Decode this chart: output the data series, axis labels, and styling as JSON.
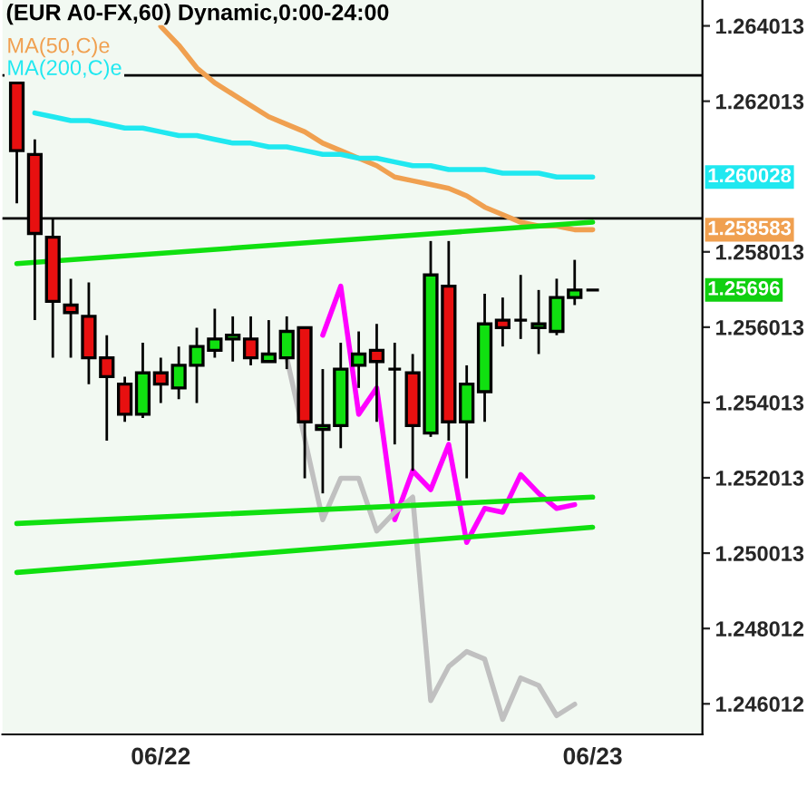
{
  "chart_data": {
    "type": "candlestick",
    "title": "(EUR A0-FX,60) Dynamic,0:00-24:00",
    "categories": [
      null,
      null,
      null,
      null,
      null,
      null,
      null,
      null,
      "06/22",
      null,
      null,
      null,
      null,
      null,
      null,
      null,
      null,
      null,
      null,
      null,
      null,
      null,
      null,
      null,
      null,
      null,
      null,
      null,
      null,
      null,
      null,
      null,
      "06/23"
    ],
    "ohlc": [
      [
        1.2625,
        1.2625,
        1.2593,
        1.2607
      ],
      [
        1.2606,
        1.261,
        1.2562,
        1.2585
      ],
      [
        1.2584,
        1.2589,
        1.2552,
        1.2567
      ],
      [
        1.2566,
        1.2573,
        1.2552,
        1.2564
      ],
      [
        1.2563,
        1.2572,
        1.2545,
        1.2552
      ],
      [
        1.2552,
        1.2558,
        1.253,
        1.2547
      ],
      [
        1.2545,
        1.2547,
        1.2535,
        1.2537
      ],
      [
        1.2537,
        1.2556,
        1.2536,
        1.2548
      ],
      [
        1.2548,
        1.2552,
        1.254,
        1.2545
      ],
      [
        1.2544,
        1.2555,
        1.2541,
        1.255
      ],
      [
        1.255,
        1.256,
        1.254,
        1.2555
      ],
      [
        1.2554,
        1.2565,
        1.2552,
        1.2557
      ],
      [
        1.2557,
        1.2563,
        1.2551,
        1.2558
      ],
      [
        1.2557,
        1.2563,
        1.255,
        1.2552
      ],
      [
        1.2551,
        1.2562,
        1.2551,
        1.2553
      ],
      [
        1.2552,
        1.2563,
        1.2549,
        1.2559
      ],
      [
        1.256,
        1.256,
        1.252,
        1.2535
      ],
      [
        1.2533,
        1.2549,
        1.2516,
        1.2534
      ],
      [
        1.2534,
        1.2556,
        1.2528,
        1.2549
      ],
      [
        1.255,
        1.2559,
        1.2544,
        1.2553
      ],
      [
        1.2554,
        1.2561,
        1.2535,
        1.2551
      ],
      [
        1.2549,
        1.2556,
        1.2529,
        1.2549
      ],
      [
        1.2548,
        1.2553,
        1.2522,
        1.2534
      ],
      [
        1.2532,
        1.2583,
        1.2531,
        1.2574
      ],
      [
        1.2571,
        1.2583,
        1.253,
        1.2535
      ],
      [
        1.2535,
        1.255,
        1.252,
        1.2545
      ],
      [
        1.2543,
        1.2569,
        1.2535,
        1.2561
      ],
      [
        1.2562,
        1.2568,
        1.2555,
        1.256
      ],
      [
        1.2562,
        1.2574,
        1.2557,
        1.2562
      ],
      [
        1.256,
        1.257,
        1.2553,
        1.2561
      ],
      [
        1.2559,
        1.2573,
        1.2558,
        1.2568
      ],
      [
        1.2568,
        1.2578,
        1.2566,
        1.257
      ],
      [
        1.257,
        1.257,
        1.257,
        1.257
      ]
    ],
    "colors": [
      "#e81010",
      "#e81010",
      "#e81010",
      "#e81010",
      "#e81010",
      "#e81010",
      "#e81010",
      "#10e010",
      "#e81010",
      "#10e010",
      "#10e010",
      "#10e010",
      "#10e010",
      "#e81010",
      "#10e010",
      "#10e010",
      "#e81010",
      "#10e010",
      "#10e010",
      "#10e010",
      "#e81010",
      "#000000",
      "#e81010",
      "#10e010",
      "#e81010",
      "#10e010",
      "#10e010",
      "#e81010",
      "#000000",
      "#10e010",
      "#10e010",
      "#10e010",
      "#000000"
    ],
    "series": [
      {
        "name": "MA(50,C)e",
        "type": "line",
        "color": "#f0a050",
        "values": [
          null,
          null,
          null,
          null,
          null,
          null,
          null,
          null,
          1.264,
          1.2635,
          1.2629,
          1.2625,
          1.2622,
          1.2619,
          1.2616,
          1.2614,
          1.2612,
          1.2609,
          1.2607,
          1.2605,
          1.2603,
          1.26,
          1.2599,
          1.2598,
          1.2597,
          1.2595,
          1.2592,
          1.259,
          1.2588,
          1.2587,
          1.2587,
          1.2586,
          1.2586
        ]
      },
      {
        "name": "MA(200,C)e",
        "type": "line",
        "color": "#20e8f0",
        "values": [
          null,
          1.2617,
          1.2616,
          1.2615,
          1.2615,
          1.2614,
          1.2613,
          1.2613,
          1.2612,
          1.2611,
          1.2611,
          1.261,
          1.2609,
          1.2609,
          1.2608,
          1.2608,
          1.2607,
          1.2606,
          1.2606,
          1.2605,
          1.2605,
          1.2604,
          1.2603,
          1.2603,
          1.2602,
          1.2602,
          1.2602,
          1.2601,
          1.2601,
          1.2601,
          1.26,
          1.26,
          1.26
        ]
      },
      {
        "type": "line",
        "color": "#ff00ff",
        "values": [
          null,
          null,
          null,
          null,
          null,
          null,
          null,
          null,
          null,
          null,
          null,
          null,
          null,
          null,
          null,
          null,
          null,
          1.2558,
          1.2571,
          1.2537,
          1.2544,
          1.2509,
          1.2522,
          1.2517,
          1.2529,
          1.2503,
          1.2512,
          1.2511,
          1.2521,
          1.2516,
          1.2512,
          1.2513,
          null
        ]
      },
      {
        "type": "line",
        "color": "#c0c0c0",
        "values": [
          null,
          null,
          null,
          null,
          null,
          null,
          null,
          null,
          null,
          null,
          null,
          null,
          null,
          null,
          null,
          1.2552,
          null,
          1.2509,
          1.252,
          1.252,
          1.2506,
          1.2511,
          1.2515,
          1.2461,
          1.247,
          1.2474,
          1.2472,
          1.2456,
          1.2467,
          1.2465,
          1.2457,
          1.246,
          null
        ]
      },
      {
        "type": "line",
        "color": "#10e010",
        "values": [
          1.2577,
          null,
          null,
          null,
          null,
          null,
          null,
          null,
          null,
          null,
          null,
          null,
          null,
          null,
          null,
          null,
          null,
          null,
          null,
          null,
          null,
          null,
          null,
          null,
          null,
          null,
          null,
          null,
          null,
          null,
          null,
          null,
          1.2588
        ]
      },
      {
        "type": "line",
        "color": "#10e010",
        "values": [
          1.2508,
          null,
          null,
          null,
          null,
          null,
          null,
          null,
          null,
          null,
          null,
          null,
          null,
          null,
          null,
          null,
          null,
          null,
          null,
          null,
          null,
          null,
          null,
          null,
          null,
          null,
          null,
          null,
          null,
          null,
          null,
          null,
          1.2515
        ]
      },
      {
        "type": "line",
        "color": "#10e010",
        "values": [
          1.2495,
          null,
          null,
          null,
          null,
          null,
          null,
          null,
          null,
          null,
          null,
          null,
          null,
          null,
          null,
          null,
          null,
          null,
          null,
          null,
          null,
          null,
          null,
          null,
          null,
          null,
          null,
          null,
          null,
          null,
          null,
          null,
          1.2507
        ]
      }
    ],
    "ref_lines": [
      {
        "axis": "y",
        "value": 1.2627,
        "color": "#000000"
      },
      {
        "axis": "y",
        "value": 1.2589,
        "color": "#000000"
      }
    ],
    "annotations": [
      "1.258583",
      "1.260028",
      "1.25696"
    ],
    "ylim": [
      1.2452,
      1.2647
    ],
    "yticks": [
      1.246012,
      1.248012,
      1.250013,
      1.252013,
      1.254013,
      1.256013,
      1.258013,
      1.262013,
      1.264013
    ],
    "legend": "top left",
    "grid": false
  }
}
